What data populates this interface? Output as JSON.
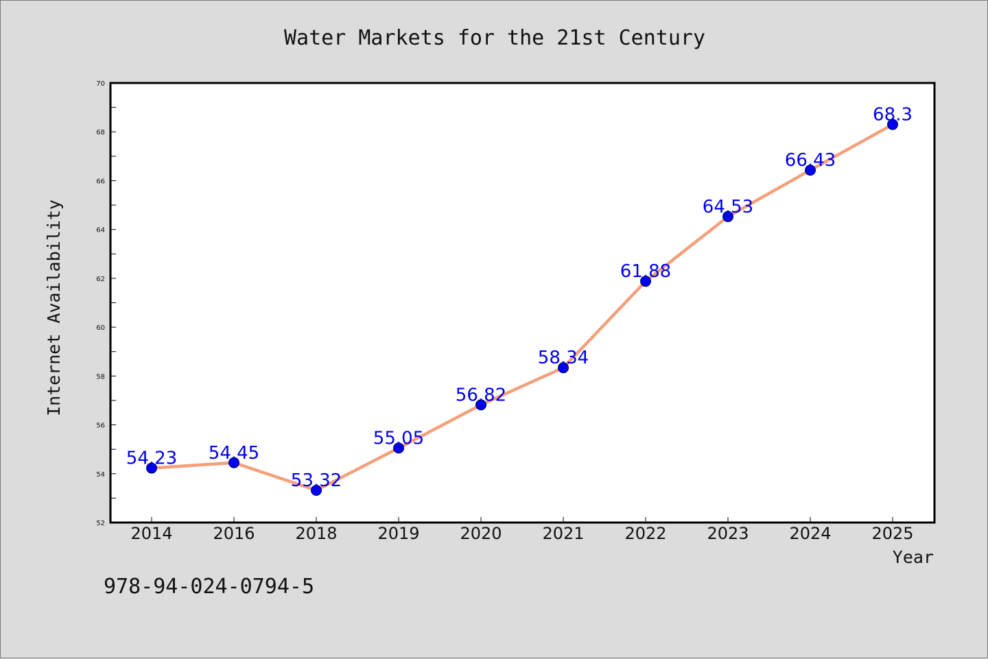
{
  "chart_data": {
    "type": "line",
    "title": "Water Markets for the 21st Century",
    "xlabel": "Year",
    "ylabel": "Internet Availability",
    "categories": [
      "2014",
      "2016",
      "2018",
      "2019",
      "2020",
      "2021",
      "2022",
      "2023",
      "2024",
      "2025"
    ],
    "series": [
      {
        "values": [
          54.23,
          54.45,
          53.32,
          55.05,
          56.82,
          58.34,
          61.88,
          64.53,
          66.43,
          68.3
        ],
        "value_labels": [
          "54.23",
          "54.45",
          "53.32",
          "55.05",
          "56.82",
          "58.34",
          "61.88",
          "64.53",
          "66.43",
          "68.3"
        ]
      }
    ],
    "ylim": [
      52,
      70
    ],
    "yticks": [
      "52",
      "54",
      "56",
      "58",
      "60",
      "62",
      "64",
      "66",
      "68",
      "70"
    ],
    "grid": false,
    "colors": {
      "line": "#f4a07a",
      "marker": "#0000ee",
      "marker_edge": "#00005a",
      "data_label": "#0000ee",
      "plot_background": "#ffffff",
      "figure_background": "#dcdcdc"
    }
  },
  "footer_text": "978-94-024-0794-5"
}
